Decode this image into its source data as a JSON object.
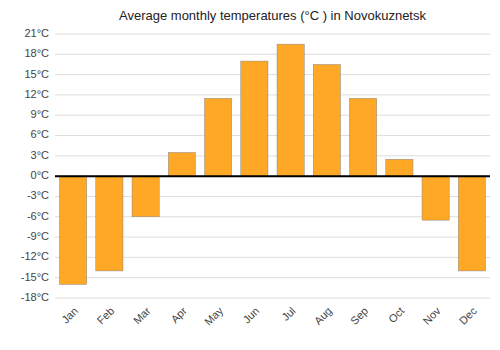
{
  "chart_data": {
    "type": "bar",
    "title": "Average monthly temperatures (°C ) in Novokuznetsk",
    "categories": [
      "Jan",
      "Feb",
      "Mar",
      "Apr",
      "May",
      "Jun",
      "Jul",
      "Aug",
      "Sep",
      "Oct",
      "Nov",
      "Dec"
    ],
    "values": [
      -16,
      -14,
      -6,
      3.5,
      11.5,
      17,
      19.5,
      16.5,
      11.5,
      2.5,
      -6.5,
      -14
    ],
    "color": "#FFA826",
    "ylim": [
      -18,
      21
    ],
    "yticks": [
      {
        "value": -18,
        "label": "-18°C"
      },
      {
        "value": -15,
        "label": "-15°C"
      },
      {
        "value": -12,
        "label": "-12°C"
      },
      {
        "value": -9,
        "label": "-9°C"
      },
      {
        "value": -6,
        "label": "-6°C"
      },
      {
        "value": -3,
        "label": "-3°C"
      },
      {
        "value": 0,
        "label": "0°C"
      },
      {
        "value": 3,
        "label": "3°C"
      },
      {
        "value": 6,
        "label": "6°C"
      },
      {
        "value": 9,
        "label": "9°C"
      },
      {
        "value": 12,
        "label": "12°C"
      },
      {
        "value": 15,
        "label": "15°C"
      },
      {
        "value": 18,
        "label": "18°C"
      },
      {
        "value": 21,
        "label": "21°C"
      }
    ],
    "grid": true
  }
}
